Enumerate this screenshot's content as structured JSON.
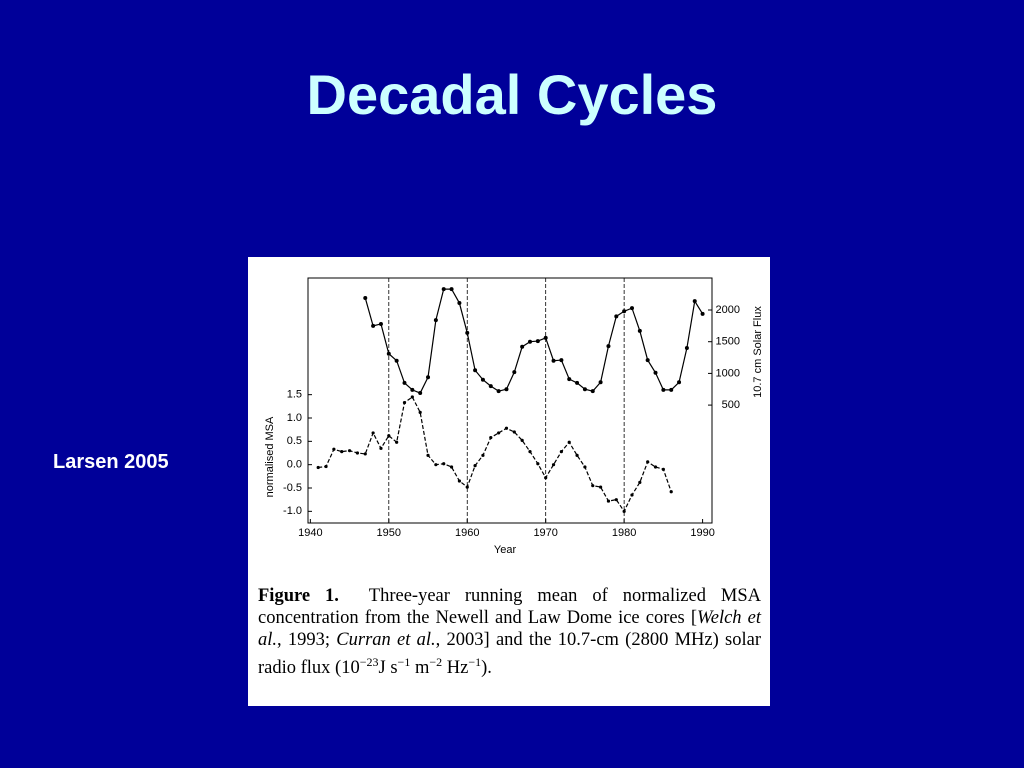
{
  "slide": {
    "title": "Decadal Cycles",
    "citation": "Larsen 2005"
  },
  "chart_data": {
    "type": "line",
    "x_label": "Year",
    "y_label": "normalised MSA",
    "y2_label": "10.7 cm Solar Flux",
    "x": [
      1941,
      1942,
      1943,
      1944,
      1945,
      1946,
      1947,
      1948,
      1949,
      1950,
      1951,
      1952,
      1953,
      1954,
      1955,
      1956,
      1957,
      1958,
      1959,
      1960,
      1961,
      1962,
      1963,
      1964,
      1965,
      1966,
      1967,
      1968,
      1969,
      1970,
      1971,
      1972,
      1973,
      1974,
      1975,
      1976,
      1977,
      1978,
      1979,
      1980,
      1981,
      1982,
      1983,
      1984,
      1985,
      1986,
      1987,
      1988,
      1989,
      1990
    ],
    "series": [
      {
        "name": "normalised MSA",
        "color": "#000000",
        "dashed": true,
        "values": [
          -0.06,
          -0.04,
          0.33,
          0.28,
          0.3,
          0.25,
          0.23,
          0.68,
          0.35,
          0.62,
          0.48,
          1.33,
          1.45,
          1.12,
          0.2,
          0.0,
          0.02,
          -0.05,
          -0.35,
          -0.48,
          -0.02,
          0.2,
          0.58,
          0.68,
          0.78,
          0.7,
          0.52,
          0.28,
          0.02,
          -0.28,
          0.0,
          0.28,
          0.48,
          0.2,
          -0.05,
          -0.45,
          -0.48,
          -0.78,
          -0.75,
          -1.0,
          -0.65,
          -0.38,
          0.06,
          -0.05,
          -0.1,
          -0.58,
          null,
          null,
          null,
          null
        ]
      },
      {
        "name": "10.7 cm Solar Flux",
        "color": "#000000",
        "dashed": false,
        "axis": "y2",
        "values": [
          null,
          null,
          null,
          null,
          null,
          null,
          2190,
          1750,
          1780,
          1310,
          1200,
          850,
          740,
          690,
          940,
          1840,
          2330,
          2330,
          2110,
          1640,
          1050,
          900,
          800,
          720,
          750,
          1020,
          1420,
          1500,
          1510,
          1560,
          1200,
          1210,
          910,
          850,
          750,
          720,
          860,
          1430,
          1900,
          1980,
          2030,
          1670,
          1210,
          1010,
          740,
          740,
          860,
          1400,
          2140,
          1940
        ]
      }
    ],
    "xlim": [
      1939.7,
      1991.2
    ],
    "xticks": [
      1940,
      1950,
      1960,
      1970,
      1980,
      1990
    ],
    "ylim": [
      -1.25,
      4.0
    ],
    "yticks": [
      {
        "value": -1.0,
        "label": "-1.0"
      },
      -0.5,
      {
        "value": 0.0,
        "label": "0.0"
      },
      0.5,
      {
        "value": 1.0,
        "label": "1.0"
      },
      1.5
    ],
    "y2lim": [
      -1360,
      2505
    ],
    "y2ticks": [
      500,
      1000,
      1500,
      2000
    ],
    "vlines": [
      1950,
      1960,
      1970,
      1980
    ]
  },
  "caption": [
    "Figure 1.",
    "Three-year running mean of normalized MSA concentration from the Newell and Law Dome ice cores [",
    "Welch et al.",
    ", 1993; ",
    "Curran et al.",
    ", 2003] and the 10.7-cm (2800 MHz) solar radio flux (10",
    "−23",
    "J s",
    "−1",
    " m",
    "−2",
    " Hz",
    "−1",
    ")."
  ]
}
